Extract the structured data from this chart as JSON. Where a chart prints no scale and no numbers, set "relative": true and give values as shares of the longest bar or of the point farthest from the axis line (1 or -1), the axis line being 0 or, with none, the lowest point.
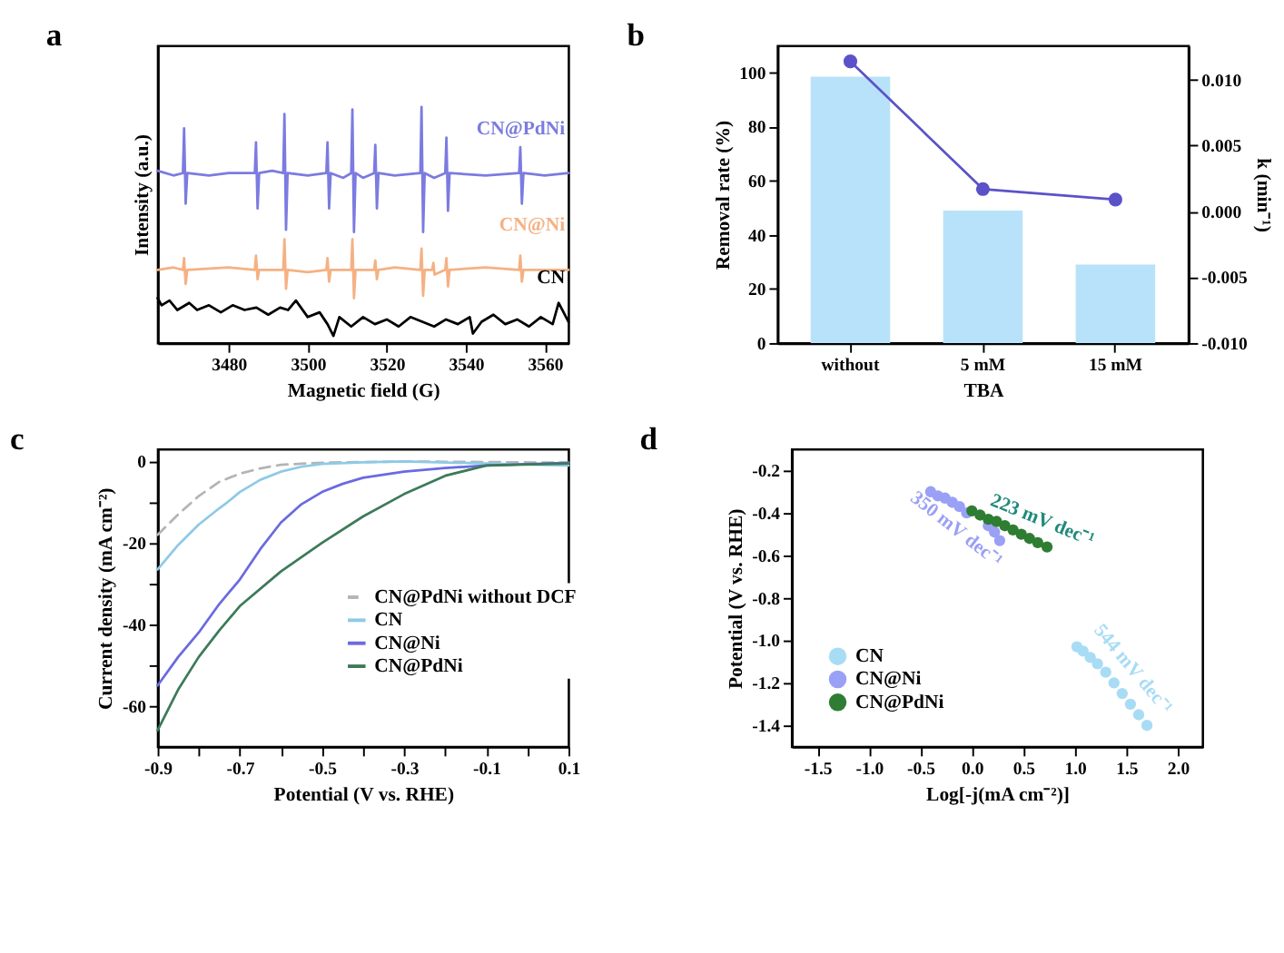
{
  "chart_data": [
    {
      "type": "line",
      "title": "a",
      "xlabel": "Magnetic field (G)",
      "ylabel": "Intensity (a.u.)",
      "relative": true,
      "legend": false,
      "xlim": [
        3462,
        3566
      ],
      "xticks": [
        3480,
        3500,
        3520,
        3540,
        3560
      ],
      "series": [
        {
          "name": "CN@PdNi",
          "color": "#7b7be0",
          "x": [
            3462,
            3466,
            3468.4,
            3468.7,
            3469.1,
            3469.5,
            3475,
            3480,
            3486.6,
            3486.9,
            3487.3,
            3487.7,
            3491,
            3493.8,
            3494.1,
            3494.5,
            3494.9,
            3500,
            3504.7,
            3505.0,
            3505.4,
            3505.8,
            3509,
            3511.0,
            3511.3,
            3511.7,
            3512.1,
            3514,
            3516.8,
            3517.1,
            3517.5,
            3517.9,
            3522,
            3528.5,
            3528.8,
            3529.2,
            3529.6,
            3532,
            3534.8,
            3535.1,
            3535.5,
            3535.9,
            3545,
            3553.5,
            3553.8,
            3554.2,
            3554.6,
            3560,
            3566
          ],
          "values": [
            0.73,
            0.71,
            0.72,
            0.91,
            0.59,
            0.72,
            0.71,
            0.72,
            0.72,
            0.85,
            0.57,
            0.72,
            0.73,
            0.72,
            0.97,
            0.48,
            0.72,
            0.71,
            0.72,
            0.85,
            0.57,
            0.72,
            0.7,
            0.72,
            0.99,
            0.47,
            0.72,
            0.7,
            0.72,
            0.84,
            0.57,
            0.72,
            0.71,
            0.72,
            1.0,
            0.47,
            0.72,
            0.7,
            0.72,
            0.87,
            0.56,
            0.72,
            0.71,
            0.72,
            0.83,
            0.59,
            0.72,
            0.71,
            0.72
          ]
        },
        {
          "name": "CN@Ni",
          "color": "#f5b183",
          "x": [
            3462,
            3466,
            3468.4,
            3468.7,
            3469.1,
            3469.5,
            3480,
            3486.6,
            3486.9,
            3487.3,
            3487.7,
            3493.8,
            3494.1,
            3494.5,
            3494.9,
            3500,
            3504.7,
            3505.0,
            3505.4,
            3505.8,
            3511.0,
            3511.3,
            3511.7,
            3512.1,
            3516.8,
            3517.1,
            3517.5,
            3517.9,
            3522,
            3528.5,
            3528.8,
            3529.2,
            3529.6,
            3531.5,
            3531.8,
            3532.1,
            3534.8,
            3535.1,
            3535.5,
            3535.9,
            3545,
            3553.5,
            3553.8,
            3554.2,
            3554.6,
            3566
          ],
          "values": [
            0.31,
            0.32,
            0.31,
            0.36,
            0.25,
            0.31,
            0.32,
            0.31,
            0.37,
            0.27,
            0.31,
            0.31,
            0.44,
            0.23,
            0.31,
            0.3,
            0.31,
            0.36,
            0.26,
            0.31,
            0.31,
            0.44,
            0.19,
            0.31,
            0.31,
            0.35,
            0.27,
            0.31,
            0.32,
            0.31,
            0.4,
            0.2,
            0.31,
            0.31,
            0.34,
            0.29,
            0.31,
            0.36,
            0.24,
            0.31,
            0.32,
            0.31,
            0.37,
            0.26,
            0.31,
            0.31
          ]
        },
        {
          "name": "CN",
          "color": "#000000",
          "x": [
            3462,
            3463,
            3465,
            3467,
            3470,
            3472,
            3475,
            3478,
            3481,
            3484,
            3487,
            3490,
            3493,
            3495,
            3497,
            3500,
            3503,
            3505,
            3506.5,
            3508,
            3511,
            3514,
            3517,
            3520,
            3523,
            3526,
            3529,
            3532,
            3535,
            3538,
            3541,
            3541.8,
            3544,
            3547,
            3550,
            3553,
            3556,
            3559,
            3562,
            3563.5,
            3566
          ],
          "values": [
            0.19,
            0.16,
            0.18,
            0.14,
            0.17,
            0.14,
            0.16,
            0.13,
            0.16,
            0.14,
            0.15,
            0.12,
            0.15,
            0.14,
            0.18,
            0.11,
            0.13,
            0.08,
            0.03,
            0.11,
            0.07,
            0.11,
            0.08,
            0.1,
            0.07,
            0.11,
            0.09,
            0.07,
            0.1,
            0.08,
            0.11,
            0.04,
            0.09,
            0.12,
            0.08,
            0.1,
            0.07,
            0.11,
            0.08,
            0.17,
            0.09
          ]
        }
      ]
    },
    {
      "type": "bar",
      "title": "b",
      "xlabel": "TBA",
      "ylabel": "Removal rate (%)",
      "y2label": "k (min⁻¹)",
      "legend": false,
      "marker": "circle",
      "categories": [
        "without",
        "5 mM",
        "15 mM"
      ],
      "ylim": [
        0,
        110
      ],
      "yticks": [
        0,
        20,
        40,
        60,
        80,
        100
      ],
      "y2lim": [
        -0.01,
        0.0126
      ],
      "y2ticks": [
        {
          "value": -0.01,
          "label": "-0.010"
        },
        -0.005,
        {
          "value": 0,
          "label": "0.000"
        },
        0.005,
        {
          "value": 0.01,
          "label": "0.010"
        }
      ],
      "series": [
        {
          "type": "bar",
          "color": "#b8e2fa",
          "values": [
            98.5,
            49,
            29
          ]
        },
        {
          "type": "line",
          "axis": "y2",
          "color": "#5b52c9",
          "values": [
            0.0114,
            0.0017,
            0.0009
          ]
        }
      ]
    },
    {
      "type": "line",
      "title": "c",
      "xlabel": "Potential (V vs. RHE)",
      "ylabel": "Current density (mA cm⁻²)",
      "legend": "right",
      "xlim": [
        -0.9,
        0.1
      ],
      "xticks": [
        -0.9,
        {
          "value": -0.8,
          "label": null
        },
        -0.7,
        {
          "value": -0.6,
          "label": null
        },
        -0.5,
        {
          "value": -0.4,
          "label": null
        },
        -0.3,
        {
          "value": -0.2,
          "label": null
        },
        -0.1,
        {
          "value": 0,
          "label": null
        },
        0.1
      ],
      "ylim": [
        -70,
        3
      ],
      "yticks": [
        -60,
        {
          "value": -50,
          "label": null
        },
        -40,
        {
          "value": -30,
          "label": null
        },
        -20,
        {
          "value": -10,
          "label": null
        },
        0
      ],
      "series": [
        {
          "name": "CN@PdNi without DCF",
          "color": "#b4b4b4",
          "line_style": "dashed",
          "x": [
            -0.9,
            -0.85,
            -0.8,
            -0.75,
            -0.7,
            -0.65,
            -0.6,
            -0.5,
            -0.3,
            0.1
          ],
          "values": [
            -18,
            -13,
            -8.5,
            -5,
            -3,
            -1.7,
            -0.8,
            -0.3,
            0,
            -0.3
          ]
        },
        {
          "name": "CN",
          "color": "#8ecae6",
          "line_style": "solid",
          "x": [
            -0.9,
            -0.85,
            -0.8,
            -0.75,
            -0.73,
            -0.7,
            -0.65,
            -0.6,
            -0.55,
            -0.5,
            -0.4,
            -0.3,
            -0.1,
            0.1
          ],
          "values": [
            -26.5,
            -20.5,
            -15.5,
            -11.5,
            -10,
            -7.5,
            -4.5,
            -2.5,
            -1.3,
            -0.6,
            -0.2,
            0,
            -0.5,
            -1
          ]
        },
        {
          "name": "CN@Ni",
          "color": "#6a6ae0",
          "line_style": "solid",
          "x": [
            -0.9,
            -0.85,
            -0.8,
            -0.75,
            -0.7,
            -0.65,
            -0.6,
            -0.55,
            -0.5,
            -0.45,
            -0.4,
            -0.3,
            -0.2,
            -0.1,
            0.1
          ],
          "values": [
            -55,
            -48,
            -42,
            -35,
            -29,
            -21.5,
            -15,
            -10.5,
            -7.5,
            -5.5,
            -4,
            -2.5,
            -1.6,
            -1,
            -0.3
          ]
        },
        {
          "name": "CN@PdNi",
          "color": "#3d7a5a",
          "line_style": "solid",
          "x": [
            -0.9,
            -0.85,
            -0.8,
            -0.75,
            -0.7,
            -0.6,
            -0.5,
            -0.4,
            -0.3,
            -0.2,
            -0.1,
            0.1
          ],
          "values": [
            -66,
            -56,
            -48,
            -41.5,
            -35.5,
            -27,
            -20,
            -13.5,
            -8,
            -3.5,
            -1,
            -0.5
          ]
        }
      ]
    },
    {
      "type": "scatter",
      "title": "d",
      "xlabel": "Log[-j(mA cm⁻²)]",
      "ylabel": "Potential (V vs. RHE)",
      "legend": "bottom left",
      "marker": "circle",
      "xlim": [
        -1.75,
        2.24
      ],
      "xticks": [
        -1.5,
        {
          "value": -1,
          "label": "-1.0"
        },
        -0.5,
        {
          "value": 0,
          "label": "0.0"
        },
        0.5,
        {
          "value": 1,
          "label": "1.0"
        },
        1.5,
        {
          "value": 2,
          "label": "2.0"
        }
      ],
      "ylim": [
        -1.5,
        -0.1
      ],
      "yticks": [
        -1.4,
        -1.2,
        {
          "value": -1,
          "label": "-1.0"
        },
        -0.8,
        -0.6,
        -0.4,
        -0.2
      ],
      "annotations": [
        "350 mV dec⁻¹",
        "223 mV dec⁻¹",
        "544 mV dec⁻¹"
      ],
      "series": [
        {
          "name": "CN",
          "color": "#a8dcf5",
          "x": [
            1.02,
            1.08,
            1.15,
            1.22,
            1.3,
            1.38,
            1.46,
            1.54,
            1.62,
            1.7
          ],
          "values": [
            -1.03,
            -1.05,
            -1.08,
            -1.11,
            -1.15,
            -1.2,
            -1.25,
            -1.3,
            -1.35,
            -1.4
          ]
        },
        {
          "name": "CN@Ni",
          "color": "#9aa0f5",
          "x": [
            -0.4,
            -0.33,
            -0.26,
            -0.19,
            -0.12,
            -0.05,
            0.02,
            0.09,
            0.16,
            0.22,
            0.27
          ],
          "values": [
            -0.3,
            -0.32,
            -0.33,
            -0.35,
            -0.37,
            -0.4,
            null,
            null,
            -0.46,
            -0.49,
            -0.53
          ]
        },
        {
          "name": "CN@PdNi",
          "color": "#2e7d32",
          "x": [
            0,
            0.08,
            0.16,
            0.24,
            0.32,
            0.4,
            0.48,
            0.56,
            0.64,
            0.73
          ],
          "values": [
            -0.39,
            -0.41,
            -0.43,
            -0.44,
            -0.46,
            -0.48,
            -0.5,
            -0.52,
            -0.54,
            -0.56
          ]
        }
      ]
    }
  ]
}
